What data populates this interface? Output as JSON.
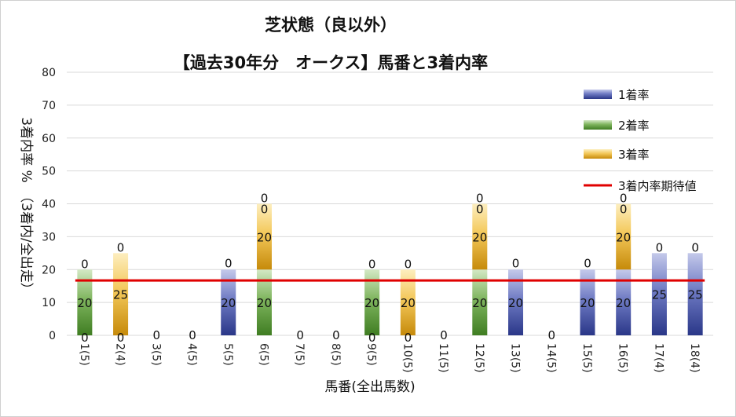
{
  "chart_data": {
    "type": "bar",
    "stacked": true,
    "title_line1": "芝状態（良以外）",
    "title_line2": "【過去30年分　オークス】馬番と3着内率",
    "xlabel": "馬番(全出馬数)",
    "ylabel": "3着内率 %　（3着内/全出走）",
    "ylim": [
      0,
      80
    ],
    "yticks": [
      0,
      10,
      20,
      30,
      40,
      50,
      60,
      70,
      80
    ],
    "grid": true,
    "legend_position": "right",
    "categories": [
      "1(5)",
      "2(4)",
      "3(5)",
      "4(5)",
      "5(5)",
      "6(5)",
      "7(5)",
      "8(5)",
      "9(5)",
      "10(5)",
      "11(5)",
      "12(5)",
      "13(5)",
      "14(5)",
      "15(5)",
      "16(5)",
      "17(4)",
      "18(4)"
    ],
    "series": [
      {
        "name": "1着率",
        "values": [
          0,
          0,
          0,
          0,
          20,
          0,
          0,
          0,
          0,
          0,
          0,
          0,
          20,
          0,
          20,
          20,
          25,
          25
        ],
        "labels": [
          "0",
          "0",
          "",
          "",
          "20",
          "",
          "",
          "",
          "0",
          "0",
          "",
          "",
          "20",
          "",
          "20",
          "20",
          "25",
          "25"
        ]
      },
      {
        "name": "2着率",
        "values": [
          20,
          0,
          0,
          0,
          0,
          20,
          0,
          0,
          20,
          0,
          0,
          20,
          0,
          0,
          0,
          0,
          0,
          0
        ],
        "labels": [
          "20",
          "",
          "",
          "",
          "",
          "20",
          "",
          "",
          "20",
          "",
          "",
          "20",
          "",
          "",
          "",
          "",
          "",
          ""
        ]
      },
      {
        "name": "3着率",
        "values": [
          0,
          25,
          0,
          0,
          0,
          20,
          0,
          0,
          0,
          20,
          0,
          20,
          0,
          0,
          0,
          20,
          0,
          0
        ],
        "labels": [
          "",
          "25",
          "",
          "",
          "0",
          "20",
          "",
          "",
          "",
          "20",
          "",
          "20",
          "0",
          "",
          "0",
          "20",
          "",
          ""
        ]
      },
      {
        "name": "3着内率期待値",
        "type": "line",
        "value": 16.7
      }
    ],
    "top_labels": [
      "0",
      "0",
      "0",
      "0",
      "",
      "0",
      "0",
      "0",
      "0",
      "0",
      "0",
      "0",
      "",
      "0",
      "",
      "0",
      "0",
      "0"
    ],
    "extra_labels": [
      "",
      "",
      "",
      "",
      "",
      "0",
      "",
      "",
      "",
      "",
      "",
      "0",
      "",
      "",
      "",
      "0",
      "",
      ""
    ],
    "colors": {
      "s1_dark": "#2f3d8f",
      "s1_light": "#b3b9e3",
      "s2_dark": "#4a8a2a",
      "s2_light": "#c6e0b4",
      "s3_dark": "#c9920f",
      "s3_light": "#fbe5a5",
      "line": "#e00000"
    }
  }
}
